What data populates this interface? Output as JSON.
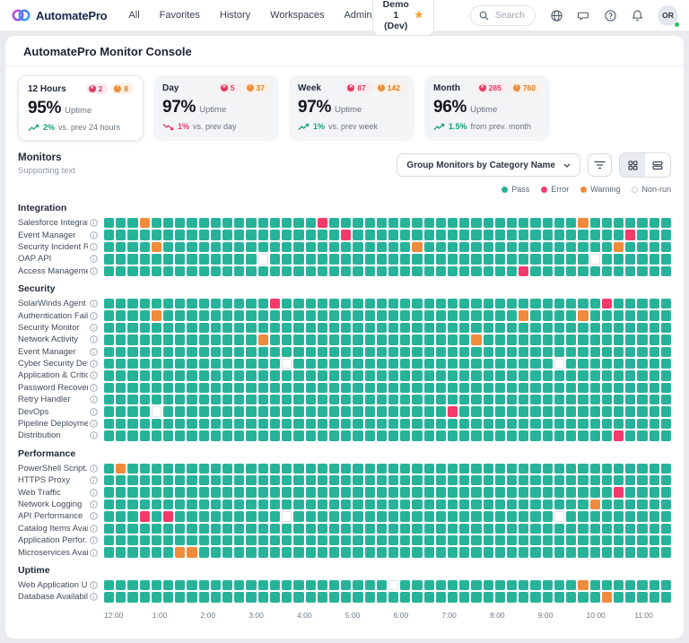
{
  "nav": {
    "brand": "AutomatePro",
    "items": [
      "All",
      "Favorites",
      "History",
      "Workspaces",
      "Admin"
    ],
    "env_button": "Demo 1 (Dev)",
    "search_placeholder": "Search",
    "avatar_initials": "OR"
  },
  "page_title": "AutomatePro Monitor Console",
  "stats": {
    "cards": [
      {
        "label": "12 Hours",
        "errors": "2",
        "warnings": "8",
        "value": "95%",
        "unit": "Uptime",
        "trend": "up",
        "trend_value": "2%",
        "trend_text": "vs. prev 24 hours"
      },
      {
        "label": "Day",
        "errors": "5",
        "warnings": "37",
        "value": "97%",
        "unit": "Uptime",
        "trend": "down",
        "trend_value": "1%",
        "trend_text": "vs. prev day"
      },
      {
        "label": "Week",
        "errors": "87",
        "warnings": "142",
        "value": "97%",
        "unit": "Uptime",
        "trend": "up",
        "trend_value": "1%",
        "trend_text": "vs. prev week"
      },
      {
        "label": "Month",
        "errors": "285",
        "warnings": "760",
        "value": "96%",
        "unit": "Uptime",
        "trend": "up",
        "trend_value": "1.5%",
        "trend_text": "from prev. month"
      }
    ]
  },
  "monitors": {
    "title": "Monitors",
    "subtitle": "Supporting text",
    "group_dropdown": "Group Monitors by Category Name",
    "legend": [
      {
        "label": "Pass",
        "color": "#27b399",
        "hollow": false
      },
      {
        "label": "Error",
        "color": "#f23a6b",
        "hollow": false
      },
      {
        "label": "Warning",
        "color": "#ee8b3d",
        "hollow": false
      },
      {
        "label": "Non-run",
        "color": "#ffffff",
        "hollow": true
      }
    ]
  },
  "chart_data": {
    "type": "heatmap",
    "columns": 48,
    "x_labels": [
      "12:00",
      "1:00",
      "2:00",
      "3:00",
      "4:00",
      "5:00",
      "6:00",
      "7:00",
      "8:00",
      "9:00",
      "10:00",
      "11:00"
    ],
    "states": {
      "pass": "#27b399",
      "error": "#f23a6b",
      "warning": "#ee8b3d",
      "nonrun": "#ffffff"
    },
    "default_state": "pass",
    "sections": [
      {
        "name": "Integration",
        "rows": [
          {
            "label": "Salesforce Integrat...",
            "overrides": {
              "3": "warning",
              "18": "error",
              "40": "warning"
            }
          },
          {
            "label": "Event Manager",
            "overrides": {
              "20": "error",
              "44": "error"
            }
          },
          {
            "label": "Security Incident R...",
            "overrides": {
              "4": "warning",
              "26": "warning",
              "43": "warning"
            }
          },
          {
            "label": "OAP API",
            "overrides": {
              "13": "nonrun",
              "41": "nonrun"
            }
          },
          {
            "label": "Access Managemen",
            "overrides": {
              "35": "error"
            }
          }
        ]
      },
      {
        "name": "Security",
        "rows": [
          {
            "label": "SolarWinds Agent",
            "overrides": {
              "14": "error",
              "42": "error"
            }
          },
          {
            "label": "Authentication Fail...",
            "overrides": {
              "4": "warning",
              "35": "warning",
              "40": "warning"
            }
          },
          {
            "label": "Security Monitor",
            "overrides": {}
          },
          {
            "label": "Network Activity",
            "overrides": {
              "13": "warning",
              "31": "warning"
            }
          },
          {
            "label": "Event Manager",
            "overrides": {}
          },
          {
            "label": "Cyber Security Det...",
            "overrides": {
              "15": "nonrun",
              "38": "nonrun"
            }
          },
          {
            "label": "Application & Critic...",
            "overrides": {}
          },
          {
            "label": "Password Recover...",
            "overrides": {}
          },
          {
            "label": "Retry Handler",
            "overrides": {}
          },
          {
            "label": "DevOps",
            "overrides": {
              "4": "nonrun",
              "29": "error"
            }
          },
          {
            "label": "Pipeline Deployment",
            "overrides": {}
          },
          {
            "label": "Distribution",
            "overrides": {
              "43": "error"
            }
          }
        ]
      },
      {
        "name": "Performance",
        "rows": [
          {
            "label": "PowerShell Script...",
            "overrides": {
              "1": "warning"
            }
          },
          {
            "label": "HTTPS Proxy",
            "overrides": {}
          },
          {
            "label": "Web Traffic",
            "overrides": {
              "43": "error"
            }
          },
          {
            "label": "Network Logging",
            "overrides": {
              "41": "warning"
            }
          },
          {
            "label": "API Performance",
            "overrides": {
              "3": "error",
              "5": "error",
              "15": "nonrun",
              "38": "nonrun"
            }
          },
          {
            "label": "Catalog Items Avail...",
            "overrides": {}
          },
          {
            "label": "Application Perfor...",
            "overrides": {}
          },
          {
            "label": "Microservices Avail...",
            "overrides": {
              "6": "warning",
              "7": "warning"
            }
          }
        ]
      },
      {
        "name": "Uptime",
        "rows": [
          {
            "label": "Web Application U...",
            "overrides": {
              "24": "nonrun",
              "40": "warning"
            }
          },
          {
            "label": "Database Availability",
            "overrides": {
              "42": "warning"
            }
          }
        ]
      }
    ]
  }
}
